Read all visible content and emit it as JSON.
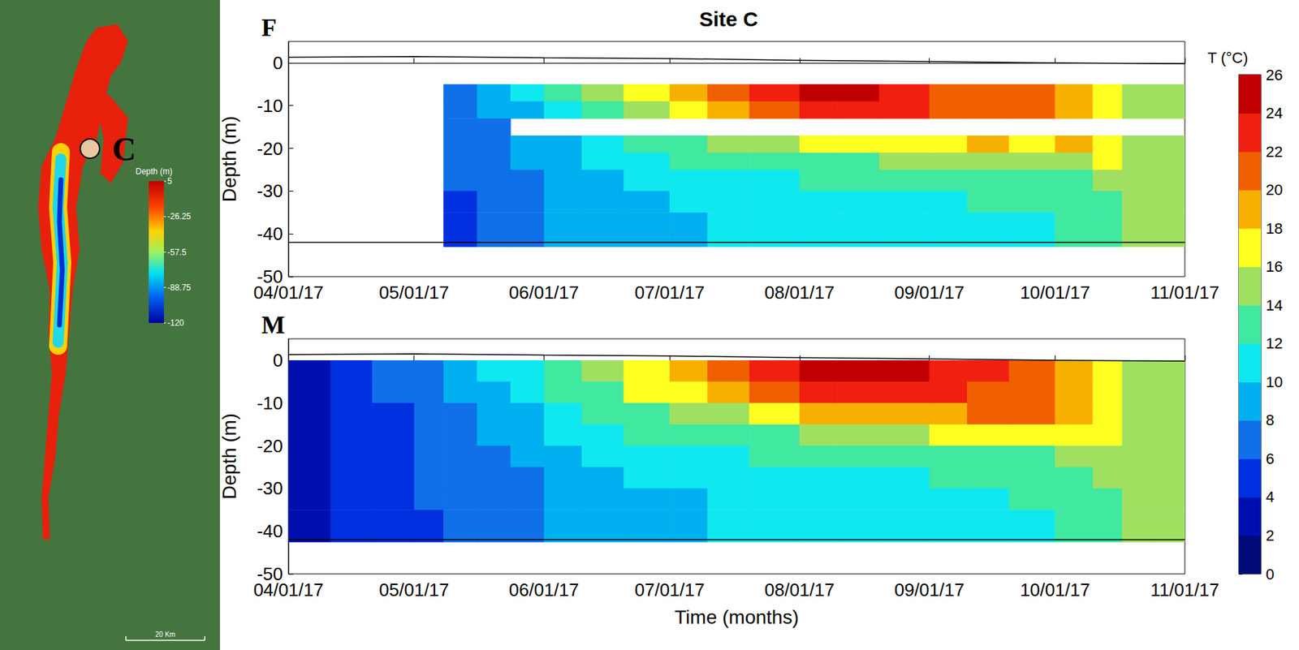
{
  "title": "Site C",
  "map": {
    "site_label": "C",
    "colorbar_title": "Depth (m)",
    "colorbar_range": [
      5,
      -120
    ],
    "colorbar_ticks": [
      5,
      -26.25,
      -57.5,
      -88.75,
      -120
    ],
    "scale_label": "20 Km"
  },
  "colorbar": {
    "title": "T (°C)",
    "range": [
      0,
      26
    ],
    "ticks": [
      0,
      2,
      4,
      6,
      8,
      10,
      12,
      14,
      16,
      18,
      20,
      22,
      24,
      26
    ],
    "colors": [
      "#000a78",
      "#0010b0",
      "#0030e0",
      "#1070e8",
      "#00b0f0",
      "#10e8f0",
      "#40e8a0",
      "#a0e060",
      "#ffff20",
      "#f8b000",
      "#f06000",
      "#f02010",
      "#c00000"
    ]
  },
  "chart_data": [
    {
      "type": "heatmap",
      "panel_label": "F",
      "ylabel": "Depth (m)",
      "xlim": [
        "2017-04-01",
        "2017-11-01"
      ],
      "xticks": [
        {
          "value": "2017-04-01",
          "label": "04/01/17"
        },
        {
          "value": "2017-05-01",
          "label": "05/01/17"
        },
        {
          "value": "2017-06-01",
          "label": "06/01/17"
        },
        {
          "value": "2017-07-01",
          "label": "07/01/17"
        },
        {
          "value": "2017-08-01",
          "label": "08/01/17"
        },
        {
          "value": "2017-09-01",
          "label": "09/01/17"
        },
        {
          "value": "2017-10-01",
          "label": "10/01/17"
        },
        {
          "value": "2017-11-01",
          "label": "11/01/17"
        }
      ],
      "ylim": [
        -50,
        5
      ],
      "yticks": [
        -50,
        -40,
        -30,
        -20,
        -10,
        0
      ],
      "cells": {
        "time_edges": [
          "2017-04-01",
          "2017-04-11",
          "2017-04-21",
          "2017-05-01",
          "2017-05-08",
          "2017-05-16",
          "2017-05-24",
          "2017-06-01",
          "2017-06-10",
          "2017-06-20",
          "2017-07-01",
          "2017-07-10",
          "2017-07-20",
          "2017-08-01",
          "2017-08-10",
          "2017-08-20",
          "2017-09-01",
          "2017-09-10",
          "2017-09-20",
          "2017-10-01",
          "2017-10-10",
          "2017-10-17",
          "2017-10-24",
          "2017-11-01"
        ],
        "depth_edges": [
          -5,
          -9,
          -13,
          -17,
          -21,
          -25,
          -30,
          -35,
          -43
        ],
        "values": [
          [
            null,
            null,
            null,
            null,
            null,
            null,
            null,
            null
          ],
          [
            null,
            null,
            null,
            null,
            null,
            null,
            null,
            null
          ],
          [
            null,
            null,
            null,
            null,
            null,
            null,
            null,
            null
          ],
          [
            null,
            null,
            null,
            null,
            null,
            null,
            null,
            null
          ],
          [
            7,
            6.5,
            6.5,
            6.5,
            6,
            6,
            5.5,
            5
          ],
          [
            8.5,
            8,
            7.5,
            7.5,
            7,
            7,
            6.5,
            6.5
          ],
          [
            10,
            9.5,
            null,
            8.5,
            8,
            7.5,
            7.5,
            7
          ],
          [
            12,
            11,
            null,
            9.5,
            9,
            8.5,
            8.5,
            8
          ],
          [
            14,
            13,
            null,
            11,
            10,
            9,
            8.5,
            8.5
          ],
          [
            16,
            15,
            null,
            12,
            11,
            10,
            9,
            8.5
          ],
          [
            18,
            17,
            null,
            13,
            12,
            11,
            10,
            9
          ],
          [
            20,
            19,
            null,
            14,
            12.5,
            11,
            10.5,
            10.5
          ],
          [
            22,
            21,
            null,
            15,
            13,
            11.5,
            11,
            10.5
          ],
          [
            24.5,
            23,
            null,
            16,
            13.5,
            12,
            11,
            10.5
          ],
          [
            24,
            22.5,
            null,
            16.5,
            13.5,
            12,
            11,
            10.5
          ],
          [
            22.5,
            22,
            null,
            17,
            14,
            12.5,
            11,
            11
          ],
          [
            21,
            20.5,
            null,
            17.5,
            14,
            12.5,
            11.5,
            11
          ],
          [
            20.5,
            20,
            null,
            18,
            15,
            13,
            12,
            11.5
          ],
          [
            21,
            20.5,
            null,
            17.5,
            15,
            13,
            12,
            11.5
          ],
          [
            19,
            19,
            null,
            18,
            15.5,
            13.5,
            12.5,
            12
          ],
          [
            17,
            17,
            null,
            17,
            16,
            15,
            13,
            12.5
          ],
          [
            15,
            15,
            null,
            15,
            15,
            15,
            15,
            14.5
          ],
          [
            14.5,
            14.5,
            null,
            14.5,
            14.5,
            14.5,
            14.5,
            14.5
          ]
        ]
      },
      "surface": {
        "x": [
          "2017-04-01",
          "2017-05-01",
          "2017-06-01",
          "2017-07-01",
          "2017-08-01",
          "2017-09-01",
          "2017-10-01",
          "2017-11-01"
        ],
        "values": [
          1.3,
          1.5,
          1.2,
          1.0,
          0.6,
          0.3,
          0.0,
          -0.2
        ],
        "color": "#000000"
      },
      "bottom": {
        "depth": -42,
        "color": "#000000"
      }
    },
    {
      "type": "heatmap",
      "panel_label": "M",
      "ylabel": "Depth (m)",
      "xlabel": "Time (months)",
      "xlim": [
        "2017-04-01",
        "2017-11-01"
      ],
      "xticks": [
        {
          "value": "2017-04-01",
          "label": "04/01/17"
        },
        {
          "value": "2017-05-01",
          "label": "05/01/17"
        },
        {
          "value": "2017-06-01",
          "label": "06/01/17"
        },
        {
          "value": "2017-07-01",
          "label": "07/01/17"
        },
        {
          "value": "2017-08-01",
          "label": "08/01/17"
        },
        {
          "value": "2017-09-01",
          "label": "09/01/17"
        },
        {
          "value": "2017-10-01",
          "label": "10/01/17"
        },
        {
          "value": "2017-11-01",
          "label": "11/01/17"
        }
      ],
      "ylim": [
        -50,
        5
      ],
      "yticks": [
        -50,
        -40,
        -30,
        -20,
        -10,
        0
      ],
      "cells": {
        "time_edges": [
          "2017-04-01",
          "2017-04-11",
          "2017-04-21",
          "2017-05-01",
          "2017-05-08",
          "2017-05-16",
          "2017-05-24",
          "2017-06-01",
          "2017-06-10",
          "2017-06-20",
          "2017-07-01",
          "2017-07-10",
          "2017-07-20",
          "2017-08-01",
          "2017-08-10",
          "2017-08-20",
          "2017-09-01",
          "2017-09-10",
          "2017-09-20",
          "2017-10-01",
          "2017-10-10",
          "2017-10-17",
          "2017-10-24",
          "2017-11-01"
        ],
        "depth_edges": [
          0,
          -5,
          -10,
          -15,
          -20,
          -25,
          -30,
          -35,
          -42.5
        ],
        "values": [
          [
            3,
            3,
            3,
            3,
            3,
            3,
            3,
            3
          ],
          [
            5,
            5,
            5,
            5,
            5,
            5,
            5,
            5
          ],
          [
            6.5,
            6.5,
            5,
            5,
            5,
            5,
            5,
            5
          ],
          [
            7,
            7,
            7,
            6.5,
            6.5,
            6.5,
            6,
            5.5
          ],
          [
            8.5,
            8,
            7.5,
            7,
            7,
            7,
            7,
            6.5
          ],
          [
            10,
            9,
            8.5,
            8,
            7.5,
            7,
            7,
            7
          ],
          [
            11,
            10.5,
            9.5,
            8.5,
            8,
            7.5,
            7,
            7
          ],
          [
            13,
            12,
            11,
            10,
            9,
            8.5,
            8.5,
            8.5
          ],
          [
            15,
            13,
            12,
            11,
            10,
            9,
            8.5,
            8.5
          ],
          [
            17,
            16,
            13,
            12,
            11,
            10,
            9,
            8.5
          ],
          [
            19,
            17,
            14,
            12.5,
            11,
            10,
            9.5,
            9
          ],
          [
            21,
            19,
            15,
            13,
            11.5,
            10.5,
            10.5,
            10.5
          ],
          [
            23,
            21,
            17,
            13.5,
            12,
            11,
            10.5,
            10.5
          ],
          [
            24.5,
            23,
            19,
            15,
            12.5,
            11,
            10.5,
            10.5
          ],
          [
            24.5,
            23.5,
            19,
            15,
            12.5,
            11,
            11,
            10.5
          ],
          [
            24,
            23,
            18,
            15,
            12.5,
            11.5,
            11,
            11
          ],
          [
            23,
            22,
            19,
            16,
            13,
            12,
            11,
            11
          ],
          [
            22,
            21.5,
            20,
            16,
            13,
            12,
            11.5,
            11
          ],
          [
            21,
            21,
            20,
            17,
            13.5,
            12.5,
            12,
            11.5
          ],
          [
            19,
            19,
            19,
            17,
            14,
            13,
            12.5,
            12
          ],
          [
            17,
            17,
            17,
            16.5,
            15,
            14,
            13,
            12.5
          ],
          [
            15,
            15,
            15,
            15,
            15,
            14.5,
            14,
            14
          ],
          [
            14.5,
            14.5,
            14.5,
            14.5,
            14.5,
            14.5,
            14.5,
            14.5
          ]
        ]
      },
      "surface": {
        "x": [
          "2017-04-01",
          "2017-05-01",
          "2017-06-01",
          "2017-07-01",
          "2017-08-01",
          "2017-09-01",
          "2017-10-01",
          "2017-11-01"
        ],
        "values": [
          1.3,
          1.5,
          1.2,
          1.0,
          0.6,
          0.3,
          0.0,
          -0.2
        ],
        "color": "#000000"
      },
      "bottom": {
        "depth": -42,
        "color": "#000000"
      }
    }
  ]
}
